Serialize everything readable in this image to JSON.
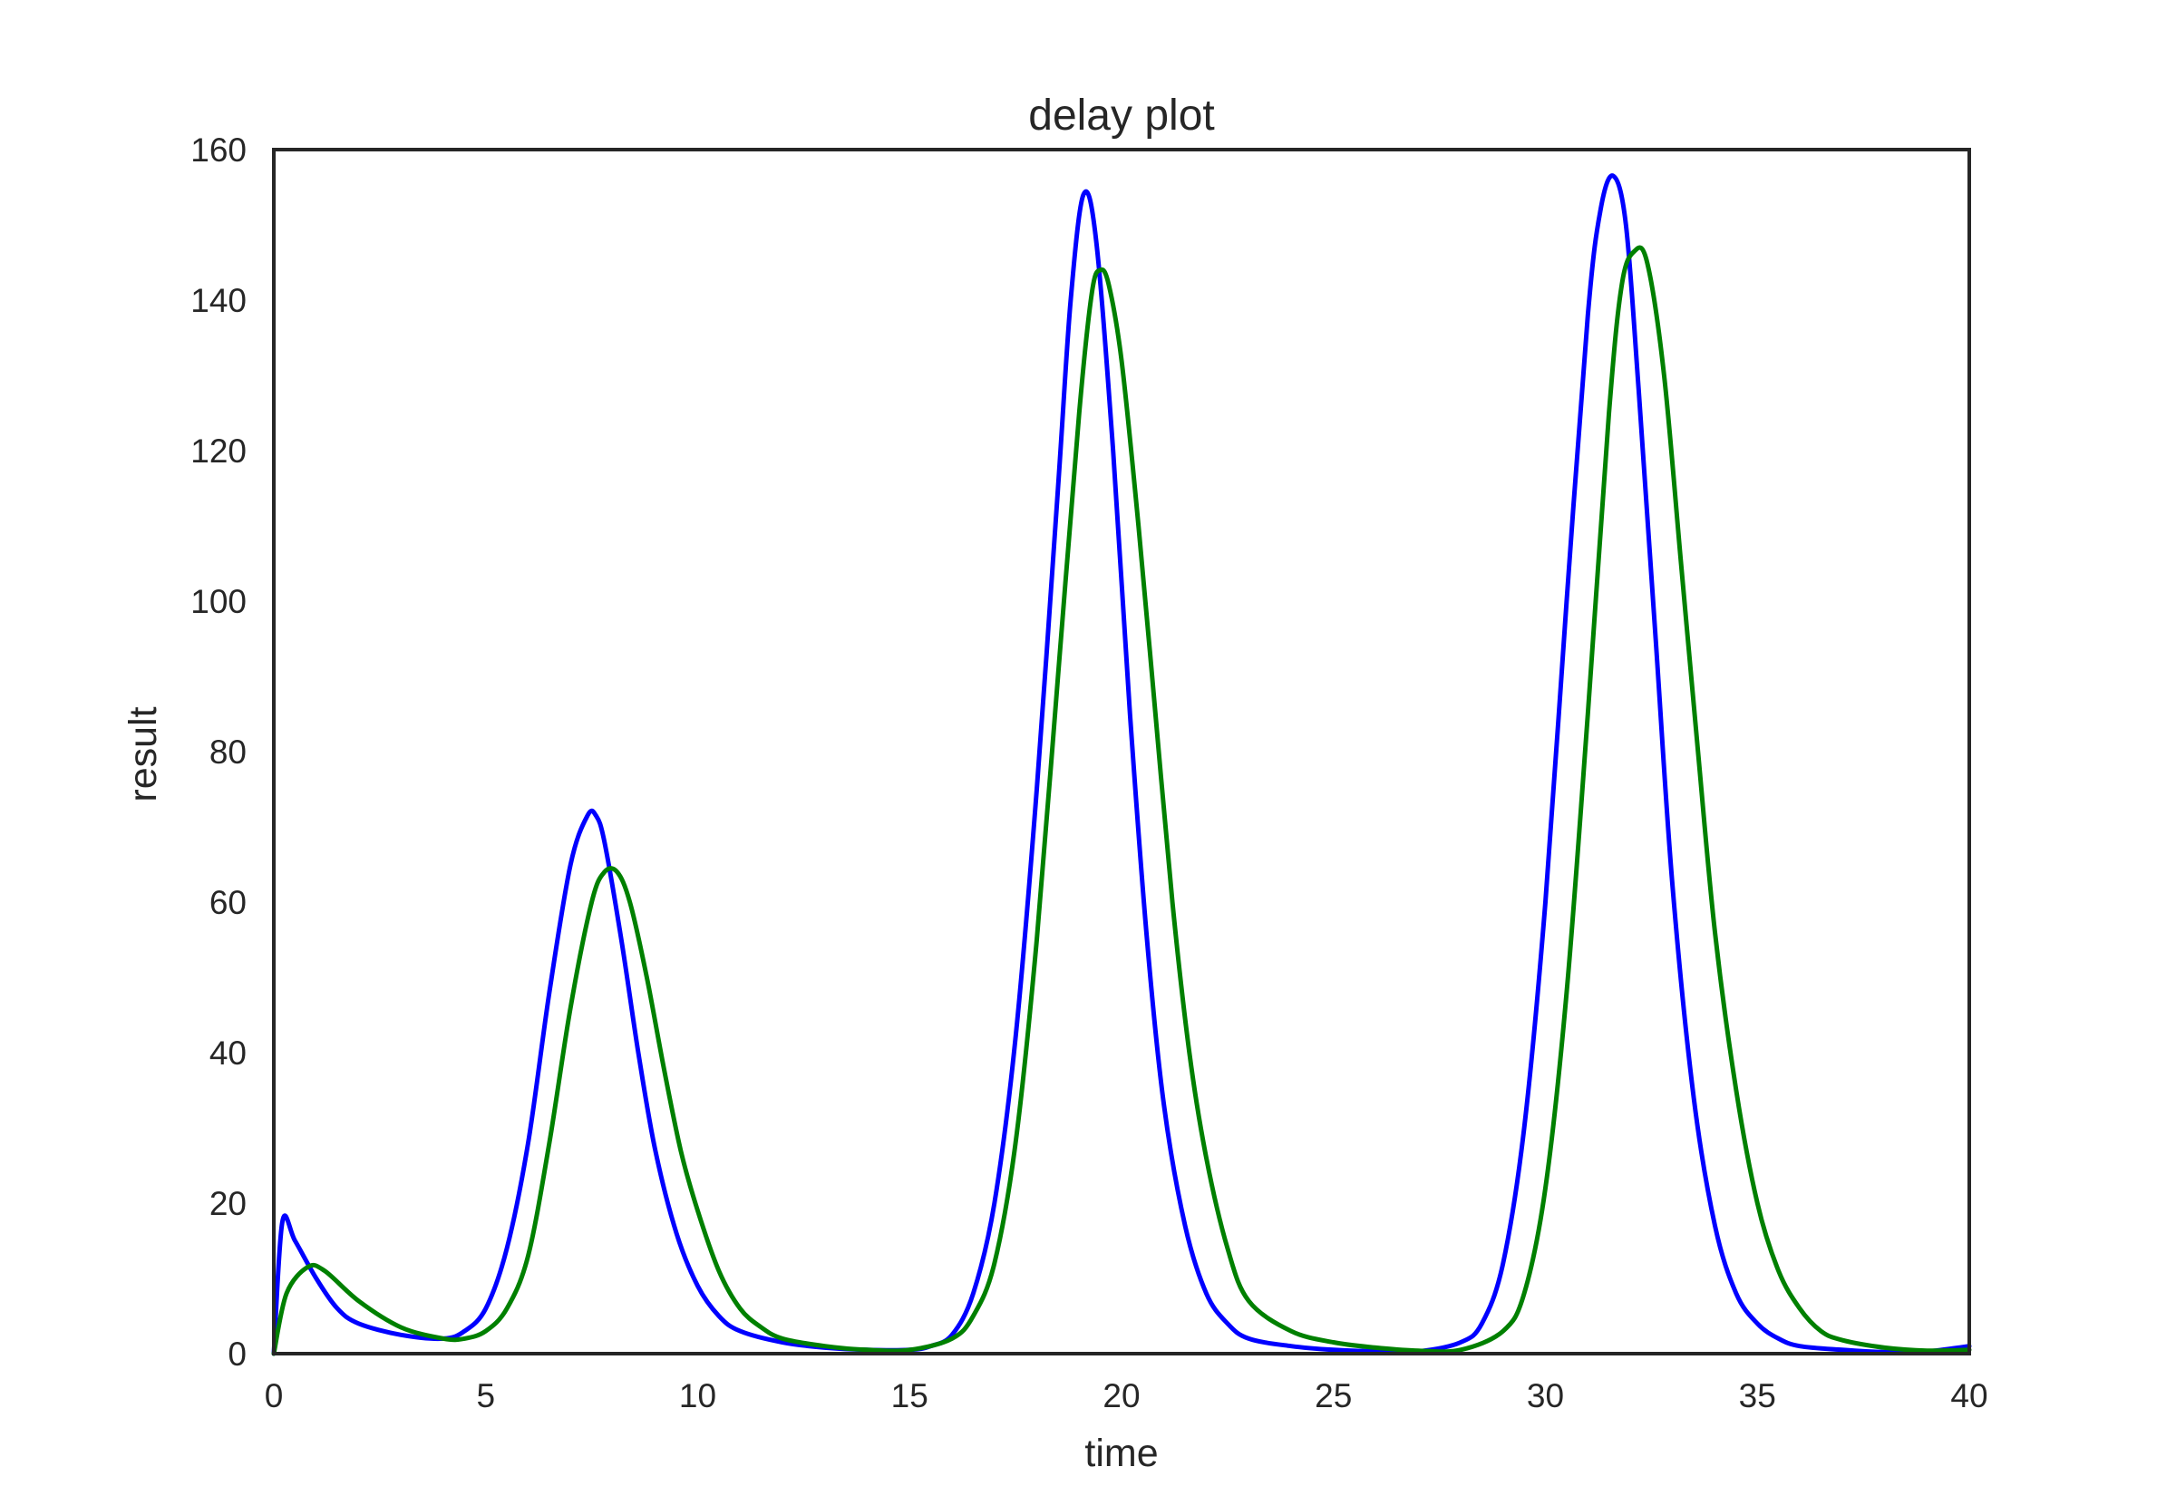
{
  "chart_data": {
    "type": "line",
    "title": "delay plot",
    "xlabel": "time",
    "ylabel": "result",
    "xlim": [
      0,
      40
    ],
    "ylim": [
      0,
      160
    ],
    "xticks": [
      0,
      5,
      10,
      15,
      20,
      25,
      30,
      35,
      40
    ],
    "yticks": [
      0,
      20,
      40,
      60,
      80,
      100,
      120,
      140,
      160
    ],
    "grid": false,
    "legend": "none",
    "series": [
      {
        "color": "#0000ff",
        "x": [
          0,
          0.2,
          0.5,
          1,
          1.5,
          2,
          3,
          4,
          4.5,
          5,
          5.5,
          6,
          6.5,
          7,
          7.4,
          7.6,
          7.8,
          8.2,
          8.6,
          9,
          9.5,
          10,
          10.5,
          11,
          12,
          13,
          14,
          15,
          15.5,
          16,
          16.5,
          17,
          17.5,
          18,
          18.5,
          18.8,
          19.1,
          19.4,
          19.8,
          20.2,
          20.6,
          21,
          21.5,
          22,
          22.5,
          23,
          24,
          25,
          26,
          27,
          28,
          28.5,
          29,
          29.5,
          30,
          30.5,
          31,
          31.3,
          31.6,
          31.9,
          32.2,
          32.6,
          33,
          33.5,
          34,
          34.5,
          35,
          35.5,
          36,
          37,
          38,
          39,
          40
        ],
        "y": [
          0,
          17.5,
          15,
          10,
          6,
          4,
          2.5,
          2,
          3,
          6,
          14,
          28,
          48,
          65,
          71.5,
          71.5,
          68,
          55,
          40,
          27,
          16,
          9,
          5,
          3,
          1.5,
          0.8,
          0.5,
          0.5,
          1,
          2.5,
          8,
          20,
          42,
          75,
          115,
          140,
          154,
          148,
          120,
          85,
          55,
          33,
          17,
          8,
          4,
          2,
          1,
          0.5,
          0.3,
          0.3,
          1.5,
          4,
          12,
          30,
          60,
          100,
          138,
          152,
          156.5,
          150,
          128,
          95,
          62,
          34,
          17,
          8,
          4,
          2,
          1,
          0.5,
          0.2,
          0.3,
          1
        ]
      },
      {
        "color": "#008000",
        "x": [
          0,
          0.3,
          0.8,
          1.2,
          2,
          3,
          4,
          4.5,
          5,
          5.5,
          6,
          6.5,
          7,
          7.5,
          7.8,
          8.1,
          8.4,
          8.8,
          9.2,
          9.6,
          10,
          10.5,
          11,
          11.5,
          12,
          13,
          14,
          15,
          16,
          16.5,
          17,
          17.5,
          18,
          18.5,
          19,
          19.3,
          19.5,
          19.7,
          20,
          20.4,
          20.8,
          21.2,
          21.6,
          22,
          22.5,
          23,
          24,
          25,
          26,
          27,
          28,
          29,
          29.5,
          30,
          30.5,
          31,
          31.5,
          31.8,
          32.1,
          32.4,
          32.8,
          33.2,
          33.6,
          34,
          34.5,
          35,
          35.5,
          36,
          36.5,
          37,
          38,
          39,
          40
        ],
        "y": [
          0,
          8,
          11.5,
          11,
          7,
          3.5,
          2,
          2,
          3,
          6,
          13,
          28,
          46,
          60,
          64,
          64,
          60,
          50,
          38,
          27,
          19,
          11,
          6,
          3.5,
          2,
          1,
          0.5,
          0.5,
          2,
          5,
          12,
          28,
          55,
          90,
          125,
          141,
          144,
          142,
          132,
          110,
          85,
          60,
          40,
          26,
          14,
          7,
          3,
          1.5,
          0.8,
          0.4,
          0.5,
          3,
          8,
          22,
          48,
          85,
          125,
          142,
          146.5,
          145,
          130,
          105,
          80,
          56,
          35,
          20,
          11,
          6,
          3,
          1.8,
          0.8,
          0.4,
          0.5
        ]
      }
    ]
  }
}
